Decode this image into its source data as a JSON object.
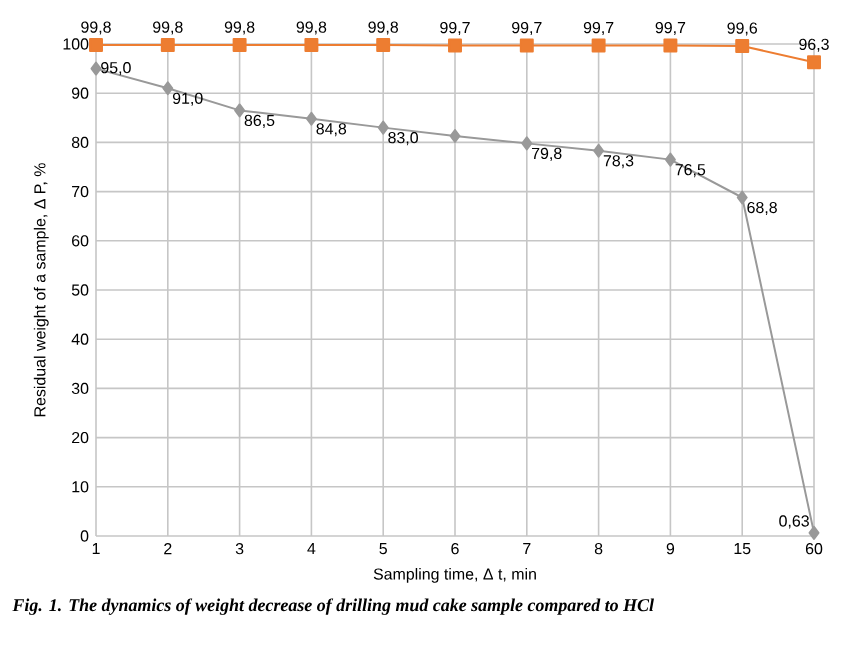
{
  "chart_data": {
    "type": "line",
    "xlabel": "Sampling time, Δ t, min",
    "ylabel": "Residual weight of a sample, Δ P, %",
    "categories": [
      "1",
      "2",
      "3",
      "4",
      "5",
      "6",
      "7",
      "8",
      "9",
      "15",
      "60"
    ],
    "series": [
      {
        "color": "#ed7d31",
        "marker": "square",
        "values": [
          99.8,
          99.8,
          99.8,
          99.8,
          99.8,
          99.7,
          99.7,
          99.7,
          99.7,
          99.6,
          96.3
        ],
        "value_labels": [
          "99,8",
          "99,8",
          "99,8",
          "99,8",
          "99,8",
          "99,7",
          "99,7",
          "99,7",
          "99,7",
          "99,6",
          "96,3"
        ]
      },
      {
        "color": "#999999",
        "marker": "diamond",
        "values": [
          95.0,
          91.0,
          86.5,
          84.8,
          83.0,
          81.3,
          79.8,
          78.3,
          76.5,
          68.8,
          0.63
        ],
        "value_labels": [
          "95,0",
          "91,0",
          "86,5",
          "84,8",
          "83,0",
          null,
          "79,8",
          "78,3",
          "76,5",
          "68,8",
          "0,63"
        ]
      }
    ],
    "ylim": [
      0,
      100
    ],
    "yticks": [
      0,
      10,
      20,
      30,
      40,
      50,
      60,
      70,
      80,
      90,
      100
    ],
    "grid": true,
    "annotations": [
      "Fig. 1. The dynamics of weight decrease of drilling mud cake sample compared to HCl"
    ]
  }
}
